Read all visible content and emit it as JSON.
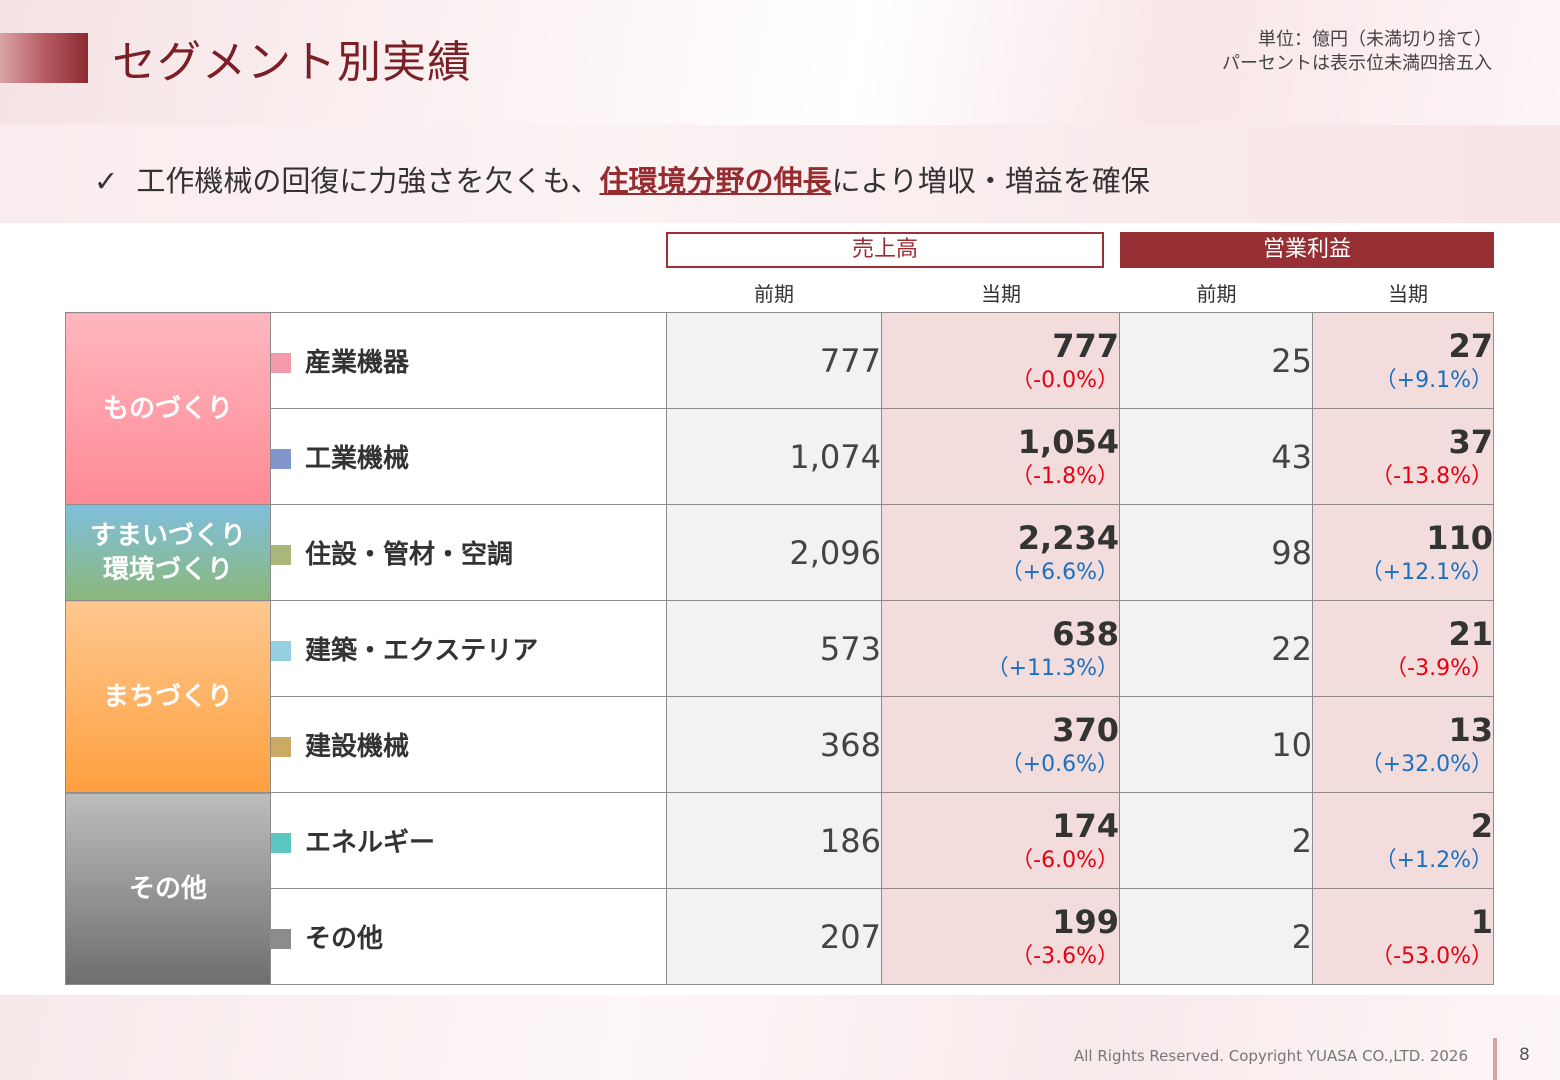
{
  "header": {
    "title": "セグメント別実績",
    "unit_line1": "単位：億円（未満切り捨て）",
    "unit_line2": "パーセントは表示位未満四捨五入"
  },
  "summary": {
    "check": "✓",
    "text_before": "工作機械の回復に力強さを欠くも、",
    "highlight": "住環境分野の伸長",
    "text_after": "により増収・増益を確保"
  },
  "table": {
    "group_sales": "売上高",
    "group_op": "営業利益",
    "col_prev": "前期",
    "col_cur": "当期",
    "categories": [
      {
        "label_line1": "ものづくり",
        "label_line2": "",
        "color_top": "#ffb7bf",
        "color_bottom": "#ff8a95"
      },
      {
        "label_line1": "すまいづくり",
        "label_line2": "環境づくり",
        "color_top": "#7fbfdc",
        "color_bottom": "#8bb77a"
      },
      {
        "label_line1": "まちづくり",
        "label_line2": "",
        "color_top": "#ffc78f",
        "color_bottom": "#ffa03f"
      },
      {
        "label_line1": "その他",
        "label_line2": "",
        "color_top": "#bdbdbd",
        "color_bottom": "#6e6e6e"
      }
    ],
    "rows": [
      {
        "name": "産業機器",
        "marker_color": "#f49aac",
        "sales_prev": "777",
        "sales_cur": "777",
        "sales_pct": "（-0.0%）",
        "sales_sign": "neg",
        "op_prev": "25",
        "op_cur": "27",
        "op_pct": "（+9.1%）",
        "op_sign": "pos"
      },
      {
        "name": "工業機械",
        "marker_color": "#8096cc",
        "sales_prev": "1,074",
        "sales_cur": "1,054",
        "sales_pct": "（-1.8%）",
        "sales_sign": "neg",
        "op_prev": "43",
        "op_cur": "37",
        "op_pct": "（-13.8%）",
        "op_sign": "neg"
      },
      {
        "name": "住設・管材・空調",
        "marker_color": "#a8b878",
        "sales_prev": "2,096",
        "sales_cur": "2,234",
        "sales_pct": "（+6.6%）",
        "sales_sign": "pos",
        "op_prev": "98",
        "op_cur": "110",
        "op_pct": "（+12.1%）",
        "op_sign": "pos"
      },
      {
        "name": "建築・エクステリア",
        "marker_color": "#95cfe0",
        "sales_prev": "573",
        "sales_cur": "638",
        "sales_pct": "（+11.3%）",
        "sales_sign": "pos",
        "op_prev": "22",
        "op_cur": "21",
        "op_pct": "（-3.9%）",
        "op_sign": "neg"
      },
      {
        "name": "建設機械",
        "marker_color": "#cda966",
        "sales_prev": "368",
        "sales_cur": "370",
        "sales_pct": "（+0.6%）",
        "sales_sign": "pos",
        "op_prev": "10",
        "op_cur": "13",
        "op_pct": "（+32.0%）",
        "op_sign": "pos"
      },
      {
        "name": "エネルギー",
        "marker_color": "#5cc6c0",
        "sales_prev": "186",
        "sales_cur": "174",
        "sales_pct": "（-6.0%）",
        "sales_sign": "neg",
        "op_prev": "2",
        "op_cur": "2",
        "op_pct": "（+1.2%）",
        "op_sign": "pos"
      },
      {
        "name": "その他",
        "marker_color": "#8c8c8c",
        "sales_prev": "207",
        "sales_cur": "199",
        "sales_pct": "（-3.6%）",
        "sales_sign": "neg",
        "op_prev": "2",
        "op_cur": "1",
        "op_pct": "（-53.0%）",
        "op_sign": "neg"
      }
    ]
  },
  "footer": {
    "copyright": "All Rights Reserved. Copyright  YUASA CO.,LTD. 2026",
    "page": "8"
  }
}
